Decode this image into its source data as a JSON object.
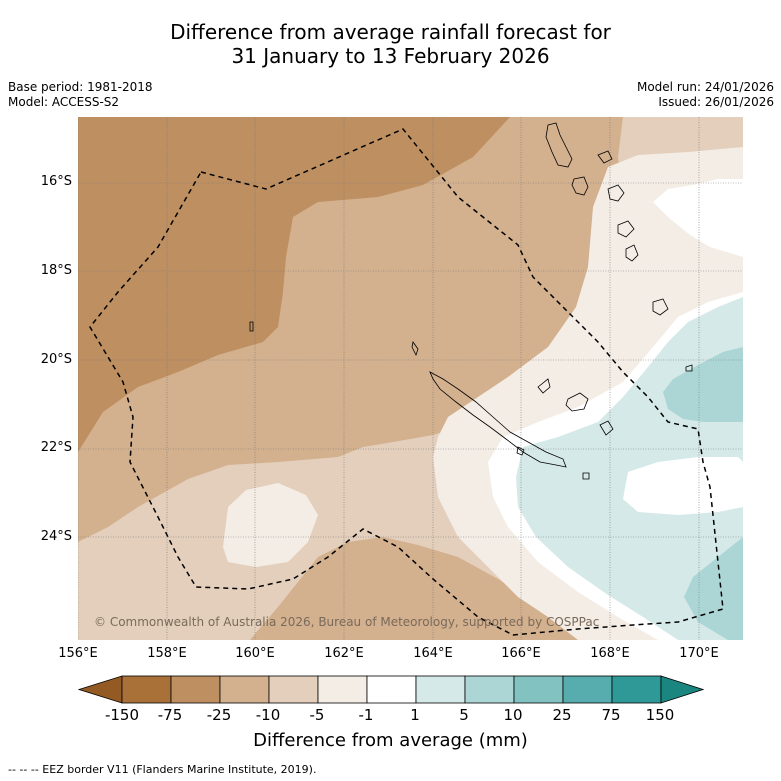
{
  "title": {
    "line1": "Difference from average rainfall forecast for",
    "line2": "31 January to 13 February 2026"
  },
  "meta": {
    "base_period": "Base period: 1981-2018",
    "model": "Model: ACCESS-S2",
    "model_run": "Model run: 24/01/2026",
    "issued": "Issued: 26/01/2026"
  },
  "map": {
    "lat_labels": [
      "16°S",
      "18°S",
      "20°S",
      "22°S",
      "24°S"
    ],
    "lon_labels": [
      "156°E",
      "158°E",
      "160°E",
      "162°E",
      "164°E",
      "166°E",
      "168°E",
      "170°E"
    ],
    "copyright": "© Commonwealth of Australia 2026, Bureau of Meteorology, supported by COSPPac"
  },
  "legend": {
    "ticks": [
      "-150",
      "-75",
      "-25",
      "-10",
      "-5",
      "-1",
      "1",
      "5",
      "10",
      "25",
      "75",
      "150"
    ],
    "colors": [
      "#a97038",
      "#be8f60",
      "#d3b08e",
      "#e3cfbc",
      "#f3ede6",
      "#ffffff",
      "#d5e9e8",
      "#acd6d6",
      "#82c2c1",
      "#57adae",
      "#2e9996"
    ],
    "title": "Difference from average (mm)"
  },
  "footnote": "--  --  -- EEZ border V11 (Flanders Marine Institute, 2019)."
}
